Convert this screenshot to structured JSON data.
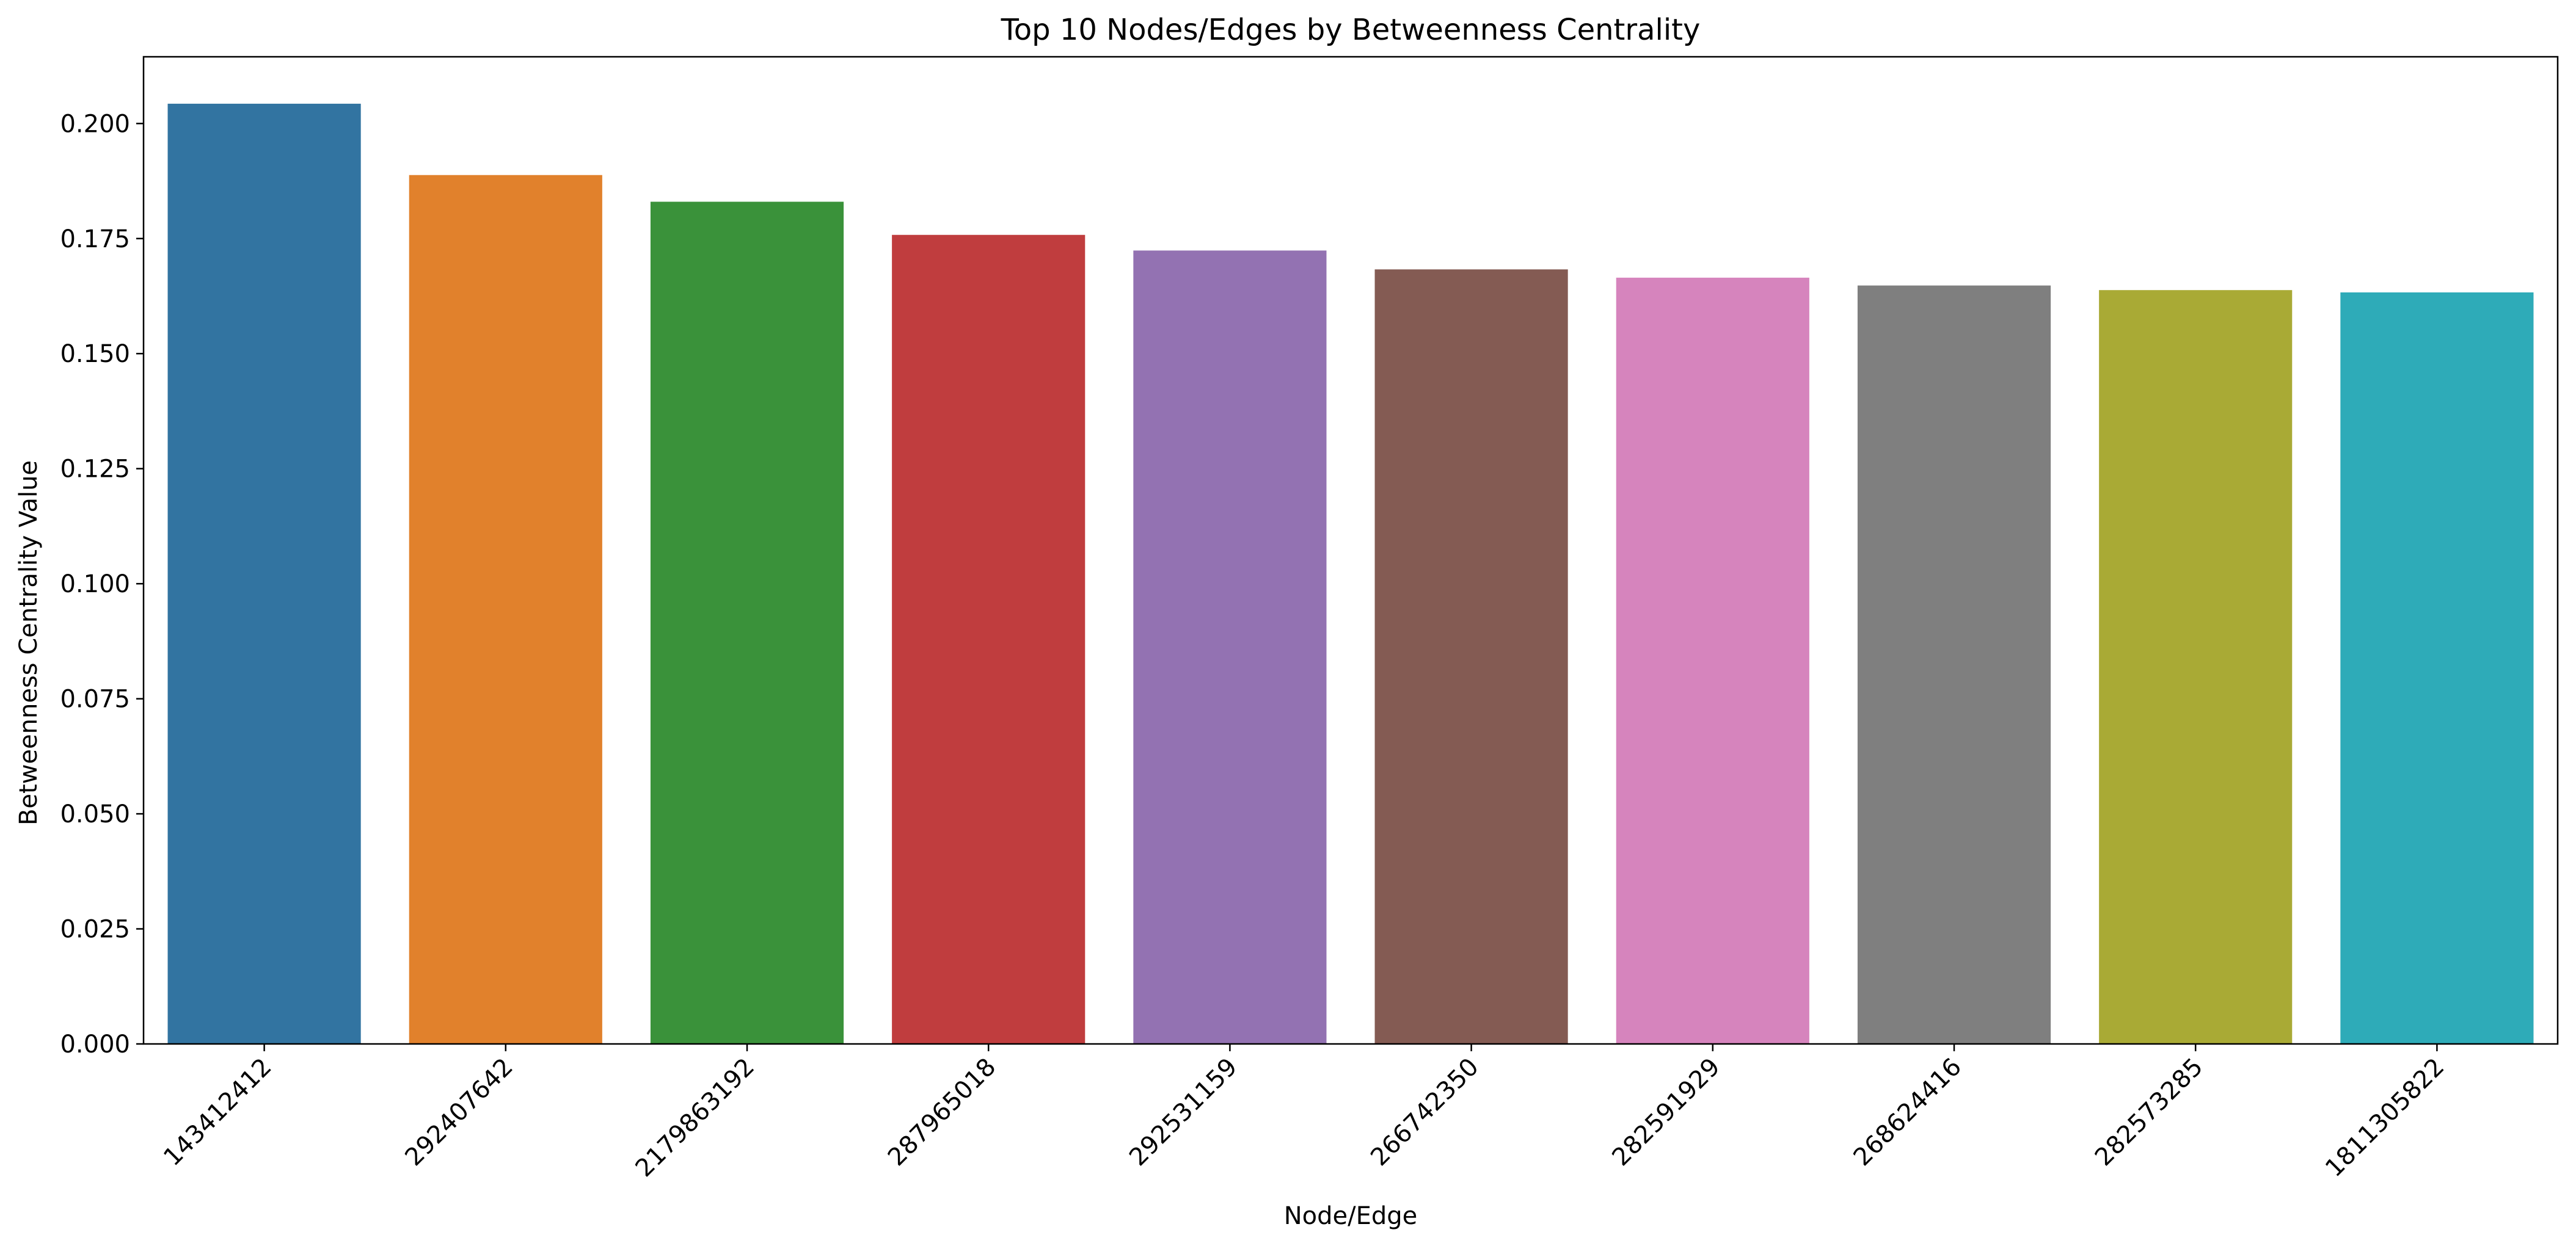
{
  "chart_data": {
    "type": "bar",
    "title": "Top 10 Nodes/Edges by Betweenness Centrality",
    "xlabel": "Node/Edge",
    "ylabel": "Betweenness Centrality Value",
    "categories": [
      "143412412",
      "292407642",
      "2179863192",
      "287965018",
      "292531159",
      "266742350",
      "282591929",
      "268624416",
      "282573285",
      "1811305822"
    ],
    "values": [
      0.2043,
      0.1888,
      0.183,
      0.1758,
      0.1724,
      0.1683,
      0.1665,
      0.1648,
      0.1638,
      0.1633
    ],
    "colors": [
      "#3274a1",
      "#e1812c",
      "#3a923a",
      "#c03d3e",
      "#9372b2",
      "#845b53",
      "#d684bd",
      "#7f7f7f",
      "#a9aa35",
      "#2eabb8"
    ],
    "ylim": [
      0,
      0.2145
    ],
    "yticks": [
      "0.000",
      "0.025",
      "0.050",
      "0.075",
      "0.100",
      "0.125",
      "0.150",
      "0.175",
      "0.200"
    ],
    "ytick_values": [
      0,
      0.025,
      0.05,
      0.075,
      0.1,
      0.125,
      0.15,
      0.175,
      0.2
    ],
    "grid": false,
    "legend": false
  }
}
